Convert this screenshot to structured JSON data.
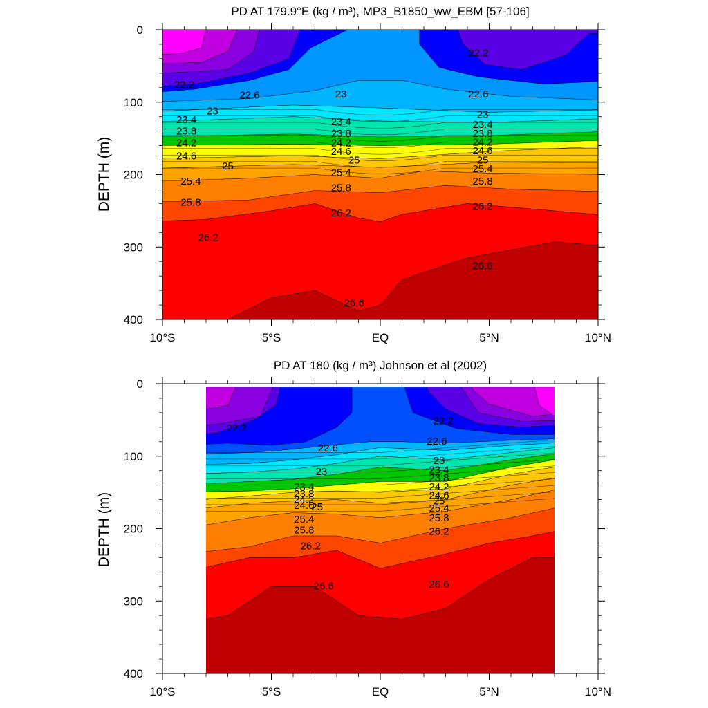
{
  "chart_data": [
    {
      "type": "contour",
      "title": "PD AT 179.9°E (kg / m³), MP3_B1850_ww_EBM [57-106]",
      "ylabel": "DEPTH (m)",
      "xlim": [
        -10,
        10
      ],
      "ylim": [
        400,
        0
      ],
      "y_inverted": true,
      "x_ticks": [
        {
          "value": -10,
          "label": "10°S"
        },
        {
          "value": -5,
          "label": "5°S"
        },
        {
          "value": 0,
          "label": "EQ"
        },
        {
          "value": 5,
          "label": "5°N"
        },
        {
          "value": 10,
          "label": "10°N"
        }
      ],
      "y_ticks": [
        0,
        100,
        200,
        300,
        400
      ],
      "data_extent_lat": [
        -10,
        10
      ],
      "contour_interval": 0.2,
      "contour_labels": [
        {
          "lat": -9.0,
          "depth": 77,
          "value": "22.2"
        },
        {
          "lat": -6.0,
          "depth": 91,
          "value": "22.6"
        },
        {
          "lat": -7.7,
          "depth": 113,
          "value": "23"
        },
        {
          "lat": -8.9,
          "depth": 125,
          "value": "23.4"
        },
        {
          "lat": -8.9,
          "depth": 141,
          "value": "23.8"
        },
        {
          "lat": -8.9,
          "depth": 157,
          "value": "24.2"
        },
        {
          "lat": -8.9,
          "depth": 175,
          "value": "24.6"
        },
        {
          "lat": -7.0,
          "depth": 189,
          "value": "25"
        },
        {
          "lat": -8.7,
          "depth": 210,
          "value": "25.4"
        },
        {
          "lat": -8.7,
          "depth": 239,
          "value": "25.8"
        },
        {
          "lat": -7.9,
          "depth": 288,
          "value": "26.2"
        },
        {
          "lat": 4.5,
          "depth": 33,
          "value": "22.2"
        },
        {
          "lat": -1.8,
          "depth": 90,
          "value": "23"
        },
        {
          "lat": 4.5,
          "depth": 90,
          "value": "22.6"
        },
        {
          "lat": 4.7,
          "depth": 118,
          "value": "23"
        },
        {
          "lat": -1.8,
          "depth": 128,
          "value": "23.4"
        },
        {
          "lat": 4.7,
          "depth": 132,
          "value": "23.4"
        },
        {
          "lat": -1.8,
          "depth": 144,
          "value": "23.8"
        },
        {
          "lat": 4.7,
          "depth": 144,
          "value": "23.8"
        },
        {
          "lat": -1.8,
          "depth": 157,
          "value": "24.2"
        },
        {
          "lat": 4.7,
          "depth": 156,
          "value": "24.2"
        },
        {
          "lat": -1.8,
          "depth": 169,
          "value": "24.6"
        },
        {
          "lat": 4.7,
          "depth": 168,
          "value": "24.6"
        },
        {
          "lat": -1.2,
          "depth": 181,
          "value": "25"
        },
        {
          "lat": 4.7,
          "depth": 181,
          "value": "25"
        },
        {
          "lat": -1.8,
          "depth": 198,
          "value": "25.4"
        },
        {
          "lat": 4.7,
          "depth": 193,
          "value": "25.4"
        },
        {
          "lat": -1.8,
          "depth": 219,
          "value": "25.8"
        },
        {
          "lat": 4.7,
          "depth": 210,
          "value": "25.8"
        },
        {
          "lat": -1.8,
          "depth": 254,
          "value": "26.2"
        },
        {
          "lat": 4.7,
          "depth": 245,
          "value": "26.2"
        },
        {
          "lat": -1.2,
          "depth": 378,
          "value": "26.6"
        },
        {
          "lat": 4.7,
          "depth": 327,
          "value": "26.6"
        }
      ]
    },
    {
      "type": "contour",
      "title": "PD AT 180 (kg / m³) Johnson et al (2002)",
      "ylabel": "DEPTH (m)",
      "xlim": [
        -10,
        10
      ],
      "ylim": [
        400,
        0
      ],
      "y_inverted": true,
      "x_ticks": [
        {
          "value": -10,
          "label": "10°S"
        },
        {
          "value": -5,
          "label": "5°S"
        },
        {
          "value": 0,
          "label": "EQ"
        },
        {
          "value": 5,
          "label": "5°N"
        },
        {
          "value": 10,
          "label": "10°N"
        }
      ],
      "y_ticks": [
        0,
        100,
        200,
        300,
        400
      ],
      "data_extent_lat": [
        -8,
        8
      ],
      "data_extent_depth": [
        5,
        400
      ],
      "contour_interval": 0.2,
      "contour_labels": [
        {
          "lat": -6.6,
          "depth": 62,
          "value": "22.2"
        },
        {
          "lat": 2.9,
          "depth": 52,
          "value": "22.2"
        },
        {
          "lat": -2.4,
          "depth": 90,
          "value": "22.6"
        },
        {
          "lat": 2.6,
          "depth": 80,
          "value": "22.6"
        },
        {
          "lat": -2.7,
          "depth": 122,
          "value": "23"
        },
        {
          "lat": 2.7,
          "depth": 107,
          "value": "23"
        },
        {
          "lat": -3.5,
          "depth": 143,
          "value": "23.4"
        },
        {
          "lat": 2.7,
          "depth": 120,
          "value": "23.4"
        },
        {
          "lat": -3.5,
          "depth": 153,
          "value": "23.8"
        },
        {
          "lat": 2.7,
          "depth": 131,
          "value": "23.8"
        },
        {
          "lat": -3.5,
          "depth": 161,
          "value": "24.2"
        },
        {
          "lat": 2.7,
          "depth": 143,
          "value": "24.2"
        },
        {
          "lat": -3.5,
          "depth": 169,
          "value": "24.6"
        },
        {
          "lat": 2.7,
          "depth": 155,
          "value": "24.6"
        },
        {
          "lat": -2.9,
          "depth": 171,
          "value": "25"
        },
        {
          "lat": 2.7,
          "depth": 163,
          "value": "25"
        },
        {
          "lat": -3.5,
          "depth": 188,
          "value": "25.4"
        },
        {
          "lat": 2.7,
          "depth": 173,
          "value": "25.4"
        },
        {
          "lat": -3.5,
          "depth": 203,
          "value": "25.8"
        },
        {
          "lat": 2.7,
          "depth": 186,
          "value": "25.8"
        },
        {
          "lat": -3.2,
          "depth": 225,
          "value": "26.2"
        },
        {
          "lat": 2.7,
          "depth": 205,
          "value": "26.2"
        },
        {
          "lat": -2.6,
          "depth": 280,
          "value": "26.6"
        },
        {
          "lat": 2.7,
          "depth": 278,
          "value": "26.6"
        }
      ]
    }
  ],
  "colors": {
    "magenta": "#ff00ff",
    "purple": "#c000e0",
    "violet": "#8800e0",
    "indigo": "#5a00e6",
    "blue": "#0000ff",
    "royal_blue": "#0050ff",
    "azure": "#0096ff",
    "sky": "#00b4ff",
    "cyan": "#00e6ff",
    "green": "#00c800",
    "yellow": "#ffff00",
    "orange": "#ff9600",
    "red": "#ff0000",
    "dark_red": "#c00000"
  }
}
